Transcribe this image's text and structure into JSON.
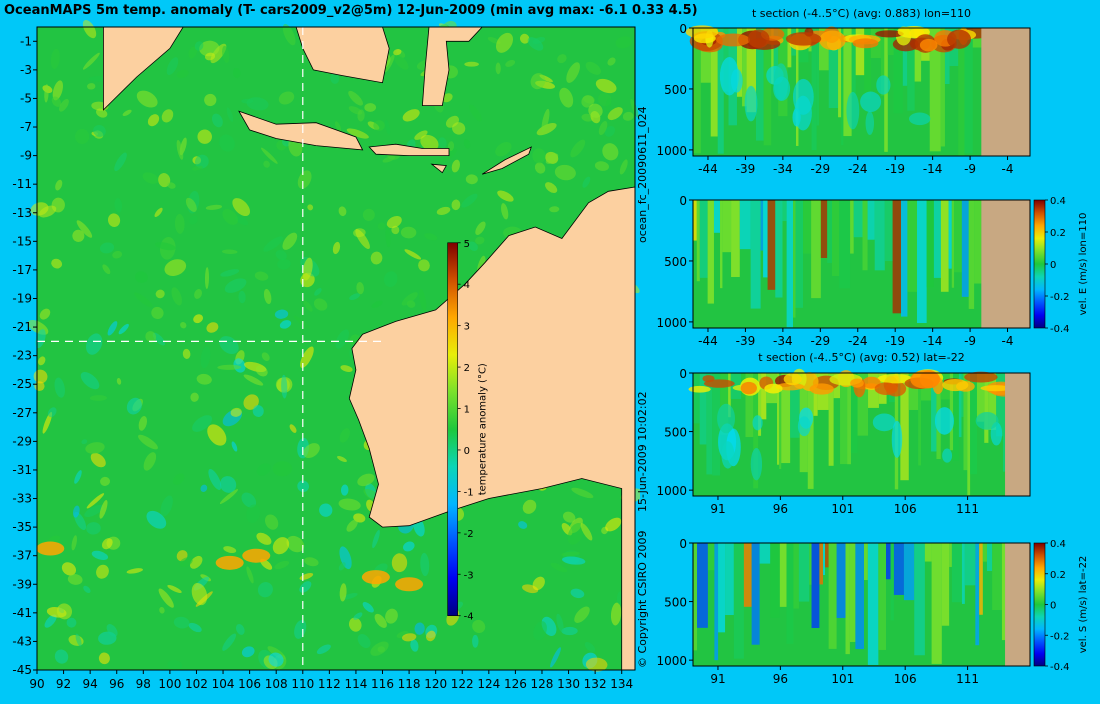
{
  "title": "OceanMAPS 5m temp. anomaly (T- cars2009_v2@5m) 12-Jun-2009 (min avg max: -6.1 0.33 4.5)",
  "side_text": {
    "forecast_id": "ocean_fc_20090611_024",
    "timestamp": "15-Jun-2009 10:02:02",
    "copyright": "© Copyright CSIRO 2009"
  },
  "colors": {
    "background": "#00c8f8",
    "land": "#fcd0a0",
    "section_land": "#c8a882",
    "ocean_base": "#22c442",
    "crosshair": "#ffffff"
  },
  "chart_data": [
    {
      "id": "map",
      "type": "heatmap",
      "title": "OceanMAPS 5m temp. anomaly (T- cars2009_v2@5m) 12-Jun-2009 (min avg max: -6.1 0.33 4.5)",
      "xlim": [
        90,
        135
      ],
      "ylim": [
        -45,
        0
      ],
      "x_ticks": [
        90,
        92,
        94,
        96,
        98,
        100,
        102,
        104,
        106,
        108,
        110,
        112,
        114,
        116,
        118,
        120,
        122,
        124,
        126,
        128,
        130,
        132,
        134
      ],
      "y_ticks": [
        -1,
        -3,
        -5,
        -7,
        -9,
        -11,
        -13,
        -15,
        -17,
        -19,
        -21,
        -23,
        -25,
        -27,
        -29,
        -31,
        -33,
        -35,
        -37,
        -39,
        -41,
        -43,
        -45
      ],
      "crosshair": {
        "lon": 110,
        "lat": -22
      },
      "colorbar": {
        "label": "temperature anomaly (°C)",
        "ticks": [
          5,
          4,
          3,
          2,
          1,
          0,
          -1,
          -2,
          -3,
          -4
        ],
        "range": [
          -4,
          5
        ]
      },
      "stats": {
        "min": -6.1,
        "avg": 0.33,
        "max": 4.5
      }
    },
    {
      "id": "tsec-lon",
      "type": "heatmap",
      "title": "t section (-4..5°C) (avg: 0.883) lon=110",
      "xlim": [
        -46,
        -1
      ],
      "ylim": [
        1050,
        0
      ],
      "x_ticks": [
        -44,
        -39,
        -34,
        -29,
        -24,
        -19,
        -14,
        -9,
        -4
      ],
      "y_ticks": [
        0,
        500,
        1000
      ],
      "land_from": -7.5
    },
    {
      "id": "vel-e",
      "type": "heatmap",
      "title": "",
      "xlim": [
        -46,
        -1
      ],
      "ylim": [
        1050,
        0
      ],
      "x_ticks": [
        -44,
        -39,
        -34,
        -29,
        -24,
        -19,
        -14,
        -9,
        -4
      ],
      "y_ticks": [
        0,
        500,
        1000
      ],
      "land_from": -7.5,
      "colorbar": {
        "label": "vel. E (m/s) lon=110",
        "ticks": [
          "0.4",
          "0.2",
          "0",
          "-0.2",
          "-0.4"
        ],
        "range": [
          -0.4,
          0.4
        ]
      }
    },
    {
      "id": "tsec-lat",
      "type": "heatmap",
      "title": "t section (-4..5°C) (avg: 0.52) lat=-22",
      "xlim": [
        89,
        116
      ],
      "ylim": [
        1050,
        0
      ],
      "x_ticks": [
        91,
        96,
        101,
        106,
        111
      ],
      "y_ticks": [
        0,
        500,
        1000
      ],
      "land_from": 114
    },
    {
      "id": "vel-s",
      "type": "heatmap",
      "title": "",
      "xlim": [
        89,
        116
      ],
      "ylim": [
        1050,
        0
      ],
      "x_ticks": [
        91,
        96,
        101,
        106,
        111
      ],
      "y_ticks": [
        0,
        500,
        1000
      ],
      "land_from": 114,
      "colorbar": {
        "label": "vel. S (m/s) lat=-22",
        "ticks": [
          "0.4",
          "0.2",
          "0",
          "-0.2",
          "-0.4"
        ],
        "range": [
          -0.4,
          0.4
        ]
      }
    }
  ]
}
